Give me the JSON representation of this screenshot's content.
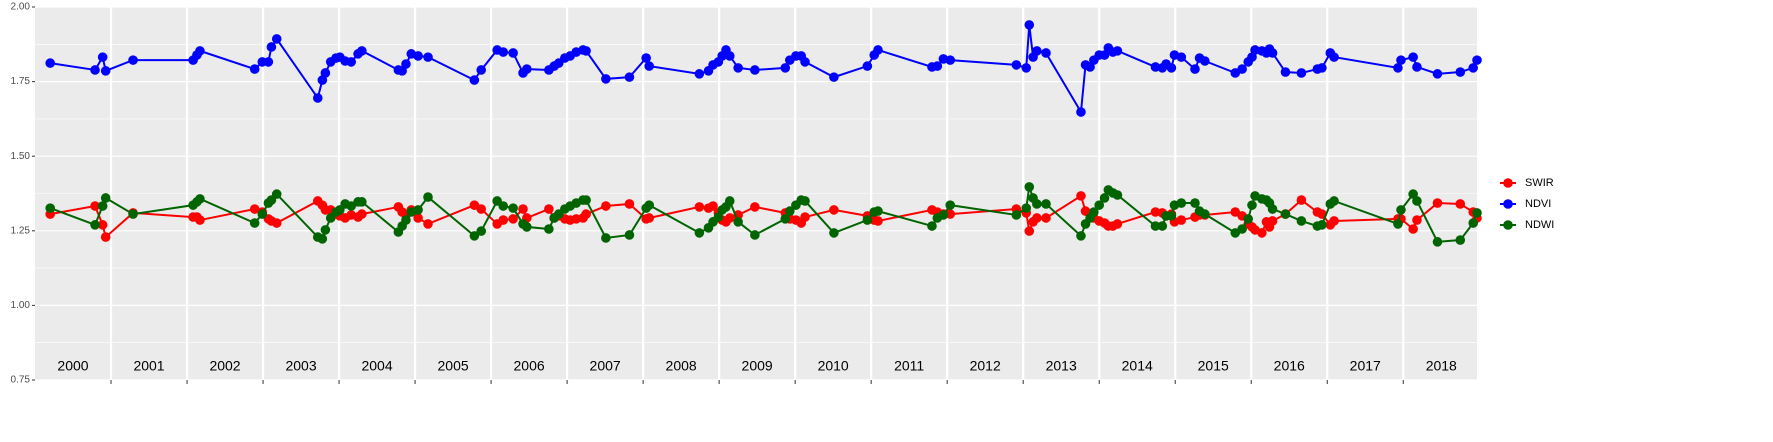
{
  "chart_data": {
    "type": "line",
    "x": [
      2000.2,
      2000.79,
      2000.89,
      2000.93,
      2001.29,
      2002.08,
      2002.13,
      2002.17,
      2002.89,
      2002.99,
      2003.07,
      2003.11,
      2003.18,
      2003.72,
      2003.78,
      2003.82,
      2003.89,
      2003.96,
      2004.01,
      2004.08,
      2004.16,
      2004.25,
      2004.3,
      2004.78,
      2004.83,
      2004.88,
      2004.95,
      2005.04,
      2005.17,
      2005.78,
      2005.87,
      2006.08,
      2006.16,
      2006.29,
      2006.42,
      2006.47,
      2006.76,
      2006.83,
      2006.89,
      2006.97,
      2007.04,
      2007.12,
      2007.21,
      2007.25,
      2007.51,
      2007.82,
      2008.04,
      2008.08,
      2008.74,
      2008.86,
      2008.92,
      2008.99,
      2009.04,
      2009.09,
      2009.14,
      2009.25,
      2009.47,
      2009.87,
      2009.93,
      2010.01,
      2010.08,
      2010.13,
      2010.51,
      2010.95,
      2011.04,
      2011.09,
      2011.8,
      2011.87,
      2011.95,
      2012.04,
      2012.91,
      2013.04,
      2013.08,
      2013.13,
      2013.18,
      2013.3,
      2013.76,
      2013.82,
      2013.88,
      2013.93,
      2014.0,
      2014.07,
      2014.12,
      2014.18,
      2014.24,
      2014.74,
      2014.83,
      2014.88,
      2014.95,
      2014.99,
      2015.08,
      2015.26,
      2015.32,
      2015.39,
      2015.79,
      2015.88,
      2015.96,
      2016.01,
      2016.05,
      2016.14,
      2016.2,
      2016.24,
      2016.28,
      2016.45,
      2016.66,
      2016.87,
      2016.93,
      2017.04,
      2017.09,
      2017.93,
      2017.97,
      2018.13,
      2018.18,
      2018.45,
      2018.75,
      2018.92,
      2018.97
    ],
    "series": [
      {
        "name": "SWIR",
        "color": "#ff0000",
        "values": [
          1.306,
          1.333,
          1.27,
          1.229,
          1.31,
          1.296,
          1.296,
          1.286,
          1.323,
          1.313,
          1.29,
          1.283,
          1.276,
          1.35,
          1.336,
          1.32,
          1.32,
          1.306,
          1.3,
          1.293,
          1.303,
          1.296,
          1.306,
          1.33,
          1.313,
          1.303,
          1.32,
          1.293,
          1.273,
          1.336,
          1.323,
          1.273,
          1.286,
          1.29,
          1.323,
          1.293,
          1.323,
          1.293,
          1.3,
          1.29,
          1.286,
          1.29,
          1.293,
          1.306,
          1.333,
          1.34,
          1.29,
          1.293,
          1.33,
          1.326,
          1.333,
          1.31,
          1.286,
          1.28,
          1.293,
          1.303,
          1.33,
          1.31,
          1.29,
          1.286,
          1.276,
          1.296,
          1.32,
          1.3,
          1.286,
          1.283,
          1.32,
          1.313,
          1.306,
          1.306,
          1.323,
          1.31,
          1.249,
          1.28,
          1.293,
          1.293,
          1.367,
          1.316,
          1.306,
          1.293,
          1.283,
          1.276,
          1.266,
          1.266,
          1.273,
          1.313,
          1.31,
          1.3,
          1.306,
          1.28,
          1.286,
          1.296,
          1.303,
          1.303,
          1.313,
          1.3,
          1.273,
          1.263,
          1.253,
          1.243,
          1.28,
          1.263,
          1.283,
          1.306,
          1.353,
          1.313,
          1.306,
          1.27,
          1.283,
          1.29,
          1.29,
          1.256,
          1.286,
          1.343,
          1.34,
          1.313,
          1.293
        ]
      },
      {
        "name": "NDVI",
        "color": "#0000ff",
        "values": [
          1.812,
          1.789,
          1.832,
          1.786,
          1.822,
          1.822,
          1.839,
          1.853,
          1.792,
          1.816,
          1.816,
          1.866,
          1.893,
          1.695,
          1.755,
          1.779,
          1.816,
          1.829,
          1.832,
          1.819,
          1.816,
          1.843,
          1.853,
          1.789,
          1.786,
          1.809,
          1.843,
          1.836,
          1.832,
          1.755,
          1.789,
          1.856,
          1.849,
          1.846,
          1.779,
          1.792,
          1.789,
          1.802,
          1.812,
          1.829,
          1.836,
          1.849,
          1.856,
          1.853,
          1.759,
          1.765,
          1.829,
          1.802,
          1.776,
          1.786,
          1.806,
          1.816,
          1.836,
          1.856,
          1.836,
          1.796,
          1.789,
          1.796,
          1.822,
          1.836,
          1.836,
          1.816,
          1.765,
          1.802,
          1.839,
          1.856,
          1.799,
          1.802,
          1.826,
          1.822,
          1.806,
          1.796,
          1.94,
          1.832,
          1.853,
          1.846,
          1.648,
          1.806,
          1.799,
          1.822,
          1.839,
          1.839,
          1.863,
          1.849,
          1.853,
          1.799,
          1.796,
          1.809,
          1.796,
          1.839,
          1.832,
          1.792,
          1.829,
          1.819,
          1.779,
          1.792,
          1.816,
          1.832,
          1.856,
          1.853,
          1.846,
          1.859,
          1.846,
          1.782,
          1.779,
          1.792,
          1.796,
          1.846,
          1.832,
          1.796,
          1.822,
          1.832,
          1.799,
          1.776,
          1.782,
          1.796,
          1.822
        ]
      },
      {
        "name": "NDWI",
        "color": "#006400",
        "values": [
          1.326,
          1.27,
          1.333,
          1.36,
          1.306,
          1.336,
          1.347,
          1.357,
          1.276,
          1.306,
          1.343,
          1.353,
          1.373,
          1.229,
          1.223,
          1.253,
          1.293,
          1.313,
          1.32,
          1.34,
          1.333,
          1.347,
          1.347,
          1.246,
          1.266,
          1.286,
          1.313,
          1.32,
          1.363,
          1.233,
          1.249,
          1.35,
          1.333,
          1.326,
          1.273,
          1.263,
          1.256,
          1.293,
          1.306,
          1.323,
          1.333,
          1.343,
          1.353,
          1.353,
          1.226,
          1.236,
          1.326,
          1.336,
          1.243,
          1.26,
          1.28,
          1.296,
          1.32,
          1.33,
          1.35,
          1.28,
          1.236,
          1.29,
          1.316,
          1.336,
          1.353,
          1.35,
          1.243,
          1.286,
          1.313,
          1.316,
          1.266,
          1.293,
          1.303,
          1.336,
          1.303,
          1.326,
          1.397,
          1.36,
          1.34,
          1.34,
          1.233,
          1.273,
          1.293,
          1.313,
          1.336,
          1.36,
          1.387,
          1.377,
          1.37,
          1.266,
          1.266,
          1.3,
          1.3,
          1.336,
          1.343,
          1.343,
          1.316,
          1.306,
          1.243,
          1.256,
          1.29,
          1.336,
          1.367,
          1.357,
          1.353,
          1.343,
          1.323,
          1.306,
          1.283,
          1.266,
          1.27,
          1.34,
          1.35,
          1.273,
          1.32,
          1.373,
          1.35,
          1.213,
          1.219,
          1.276,
          1.31
        ]
      }
    ],
    "xlim": [
      2000,
      2018.97
    ],
    "xticks": [
      2001,
      2002,
      2003,
      2004,
      2005,
      2006,
      2007,
      2008,
      2009,
      2010,
      2011,
      2012,
      2013,
      2014,
      2015,
      2016,
      2017,
      2018
    ],
    "year_labels": [
      "2000",
      "2001",
      "2002",
      "2003",
      "2004",
      "2005",
      "2006",
      "2007",
      "2008",
      "2009",
      "2010",
      "2011",
      "2012",
      "2013",
      "2014",
      "2015",
      "2016",
      "2017",
      "2018"
    ],
    "ylim": [
      0.75,
      2
    ],
    "yticks": [
      {
        "value": 0.75,
        "label": "0.75"
      },
      {
        "value": 1,
        "label": "1.00"
      },
      {
        "value": 1.25,
        "label": "1.25"
      },
      {
        "value": 1.5,
        "label": "1.50"
      },
      {
        "value": 1.75,
        "label": "1.75"
      },
      {
        "value": 2,
        "label": "2.00"
      }
    ],
    "grid": true,
    "legend": "right"
  }
}
